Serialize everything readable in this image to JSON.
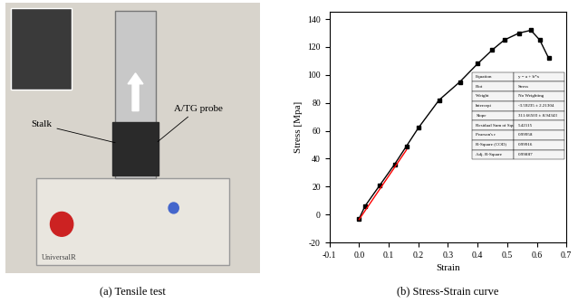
{
  "chart_data": {
    "type": "line",
    "caption": "(b) Stress-Strain curve",
    "x_label": "Strain",
    "y_label": "Stress [Mpa]",
    "xlim": [
      -0.1,
      0.7
    ],
    "xticks": [
      -0.1,
      0.0,
      0.1,
      0.2,
      0.3,
      0.4,
      0.5,
      0.6,
      0.7
    ],
    "ylim": [
      -20,
      145
    ],
    "yticks": [
      -20,
      0,
      20,
      40,
      60,
      80,
      100,
      120,
      140
    ],
    "grid": false,
    "series": [
      {
        "color": "#000000",
        "marker": "s",
        "line_style": "solid",
        "x": [
          0.0,
          0.02,
          0.07,
          0.12,
          0.16,
          0.2,
          0.27,
          0.34,
          0.4,
          0.45,
          0.49,
          0.54,
          0.58,
          0.61,
          0.64
        ],
        "values": [
          -3,
          6,
          21,
          36,
          49,
          62,
          82,
          95,
          108,
          118,
          125,
          130,
          132,
          125,
          112
        ]
      },
      {
        "color": "#ff0000",
        "marker": "none",
        "line_style": "solid",
        "x": [
          0.0,
          0.16
        ],
        "values": [
          -3.6,
          46.3
        ]
      }
    ],
    "fit_table": [
      [
        "Equation",
        "y = a + b*x"
      ],
      [
        "Plot",
        "Stress"
      ],
      [
        "Weight",
        "No Weighting"
      ],
      [
        "Intercept",
        "-3.59235 ± 2.21304"
      ],
      [
        "Slope",
        "311.66503 ± 8.94343"
      ],
      [
        "Residual Sum of Squares",
        "5.42115"
      ],
      [
        "Pearson's r",
        "0.99958"
      ],
      [
        "R-Square (COD)",
        "0.99916"
      ],
      [
        "Adj. R-Square",
        "0.99887"
      ]
    ]
  },
  "photo": {
    "caption": "(a) Tensile test",
    "labels": [
      "Stalk",
      "A/TG probe"
    ],
    "brand": "UniversalR"
  }
}
